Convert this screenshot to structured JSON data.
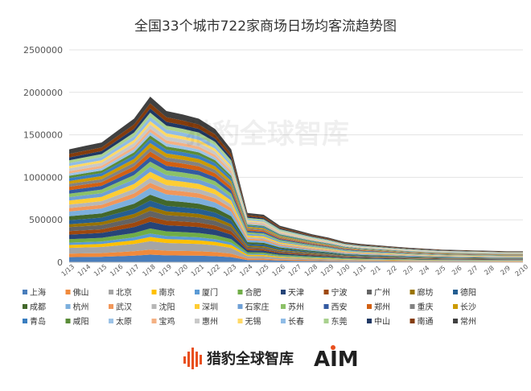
{
  "chart_data": {
    "type": "area",
    "stacked": true,
    "title": "全国33个城市722家商场日场均客流趋势图",
    "xlabel": "",
    "ylabel": "",
    "ylim": [
      0,
      2500000
    ],
    "yticks": [
      0,
      500000,
      1000000,
      1500000,
      2000000,
      2500000
    ],
    "ytick_labels": [
      "0",
      "500000",
      "1000000",
      "1500000",
      "2000000",
      "2500000"
    ],
    "grid": true,
    "legend": "bottom",
    "x": [
      "1/13",
      "1/14",
      "1/15",
      "1/16",
      "1/17",
      "1/18",
      "1/19",
      "1/20",
      "1/21",
      "1/22",
      "1/23",
      "1/24",
      "1/25",
      "1/26",
      "1/27",
      "1/28",
      "1/29",
      "1/30",
      "1/31",
      "2/1",
      "2/2",
      "2/3",
      "2/4",
      "2/5",
      "2/6",
      "2/7",
      "2/8",
      "2/9",
      "2/10"
    ],
    "total": [
      1330000,
      1370000,
      1410000,
      1550000,
      1690000,
      1950000,
      1780000,
      1740000,
      1690000,
      1570000,
      1330000,
      580000,
      560000,
      430000,
      380000,
      330000,
      290000,
      240000,
      215000,
      200000,
      185000,
      170000,
      160000,
      150000,
      145000,
      140000,
      135000,
      130000,
      130000
    ],
    "series": [
      {
        "name": "上海",
        "color": "#4a7ebb"
      },
      {
        "name": "佛山",
        "color": "#f08a3c"
      },
      {
        "name": "北京",
        "color": "#a5a5a5"
      },
      {
        "name": "南京",
        "color": "#ffc000"
      },
      {
        "name": "厦门",
        "color": "#5b9bd5"
      },
      {
        "name": "合肥",
        "color": "#70ad47"
      },
      {
        "name": "天津",
        "color": "#264478"
      },
      {
        "name": "宁波",
        "color": "#9e480e"
      },
      {
        "name": "广州",
        "color": "#636363"
      },
      {
        "name": "廊坊",
        "color": "#997300"
      },
      {
        "name": "德阳",
        "color": "#255e91"
      },
      {
        "name": "成都",
        "color": "#43682b"
      },
      {
        "name": "杭州",
        "color": "#7cafdd"
      },
      {
        "name": "武汉",
        "color": "#f1975a"
      },
      {
        "name": "沈阳",
        "color": "#b7b7b7"
      },
      {
        "name": "深圳",
        "color": "#ffcd33"
      },
      {
        "name": "石家庄",
        "color": "#6fa0d6"
      },
      {
        "name": "苏州",
        "color": "#8cc168"
      },
      {
        "name": "西安",
        "color": "#335aa1"
      },
      {
        "name": "郑州",
        "color": "#d26012"
      },
      {
        "name": "重庆",
        "color": "#828282"
      },
      {
        "name": "长沙",
        "color": "#cc9a00"
      },
      {
        "name": "青岛",
        "color": "#3a7ebf"
      },
      {
        "name": "咸阳",
        "color": "#5a8c38"
      },
      {
        "name": "太原",
        "color": "#9dc3e6"
      },
      {
        "name": "宝鸡",
        "color": "#f4b183"
      },
      {
        "name": "惠州",
        "color": "#c9c9c9"
      },
      {
        "name": "无锡",
        "color": "#ffd966"
      },
      {
        "name": "长春",
        "color": "#8fbce6"
      },
      {
        "name": "东莞",
        "color": "#a9d18e"
      },
      {
        "name": "中山",
        "color": "#203864"
      },
      {
        "name": "南通",
        "color": "#843c0c"
      },
      {
        "name": "常州",
        "color": "#404040"
      }
    ],
    "series_shares": [
      0.045,
      0.03,
      0.05,
      0.025,
      0.02,
      0.03,
      0.04,
      0.03,
      0.035,
      0.025,
      0.035,
      0.035,
      0.04,
      0.03,
      0.03,
      0.035,
      0.03,
      0.03,
      0.03,
      0.03,
      0.025,
      0.025,
      0.025,
      0.02,
      0.02,
      0.02,
      0.025,
      0.02,
      0.025,
      0.025,
      0.025,
      0.03,
      0.04
    ],
    "watermark": "猎豹全球智库"
  },
  "footer": {
    "brand": "猎豹全球智库",
    "logo_text": "AIM"
  },
  "colors": {
    "grid": "#e3e3e3",
    "axis": "#bfbfbf"
  }
}
